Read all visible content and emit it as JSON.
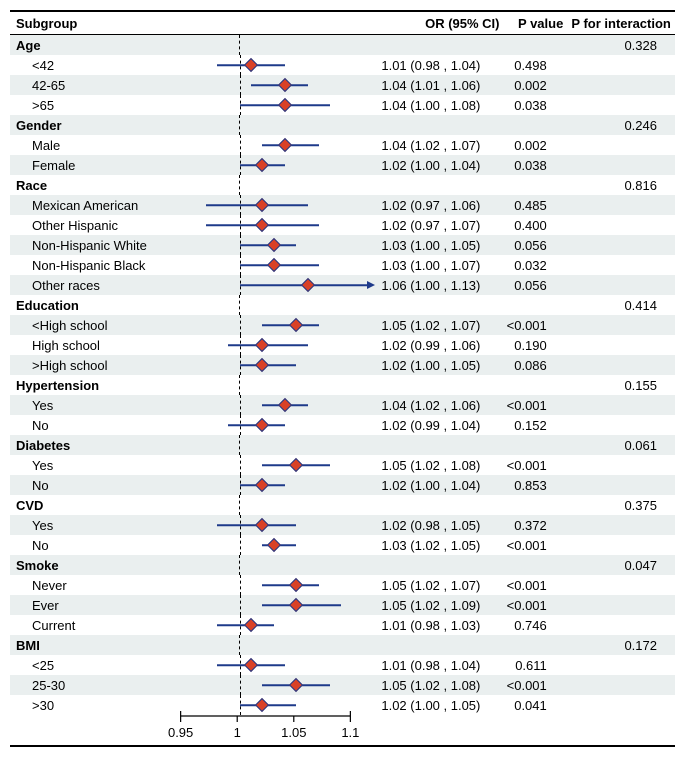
{
  "headers": {
    "subgroup": "Subgroup",
    "or": "OR (95% CI)",
    "p": "P value",
    "pint": "P for interaction"
  },
  "plot": {
    "xmin": 0.93,
    "xmax": 1.12,
    "ref": 1.0,
    "axis_start": 0.95,
    "axis_end": 1.1,
    "ticks": [
      0.95,
      1,
      1.05,
      1.1
    ],
    "tick_labels": [
      "0.95",
      "1",
      "1.05",
      "1.1"
    ],
    "line_color": "#1e3a8a",
    "point_fill": "#d94126",
    "point_stroke": "#1e3a8a",
    "stripe_color": "#eaefef",
    "text_color": "#000000",
    "font_size": 13
  },
  "rows": [
    {
      "type": "group",
      "label": "Age",
      "pint": "0.328",
      "striped": true
    },
    {
      "type": "item",
      "label": "<42",
      "or": 1.01,
      "lo": 0.98,
      "hi": 1.04,
      "or_text": "1.01 (0.98 , 1.04)",
      "p": "0.498",
      "striped": false
    },
    {
      "type": "item",
      "label": "42-65",
      "or": 1.04,
      "lo": 1.01,
      "hi": 1.06,
      "or_text": "1.04 (1.01 , 1.06)",
      "p": "0.002",
      "striped": true
    },
    {
      "type": "item",
      "label": ">65",
      "or": 1.04,
      "lo": 1.0,
      "hi": 1.08,
      "or_text": "1.04 (1.00 , 1.08)",
      "p": "0.038",
      "striped": false
    },
    {
      "type": "group",
      "label": "Gender",
      "pint": "0.246",
      "striped": true
    },
    {
      "type": "item",
      "label": "Male",
      "or": 1.04,
      "lo": 1.02,
      "hi": 1.07,
      "or_text": "1.04 (1.02 , 1.07)",
      "p": "0.002",
      "striped": false
    },
    {
      "type": "item",
      "label": "Female",
      "or": 1.02,
      "lo": 1.0,
      "hi": 1.04,
      "or_text": "1.02 (1.00 , 1.04)",
      "p": "0.038",
      "striped": true
    },
    {
      "type": "group",
      "label": "Race",
      "pint": "0.816",
      "striped": false
    },
    {
      "type": "item",
      "label": "Mexican American",
      "or": 1.02,
      "lo": 0.97,
      "hi": 1.06,
      "or_text": "1.02 (0.97 , 1.06)",
      "p": "0.485",
      "striped": true
    },
    {
      "type": "item",
      "label": "Other Hispanic",
      "or": 1.02,
      "lo": 0.97,
      "hi": 1.07,
      "or_text": "1.02 (0.97 , 1.07)",
      "p": "0.400",
      "striped": false
    },
    {
      "type": "item",
      "label": "Non-Hispanic White",
      "or": 1.03,
      "lo": 1.0,
      "hi": 1.05,
      "or_text": "1.03 (1.00 , 1.05)",
      "p": "0.056",
      "striped": true
    },
    {
      "type": "item",
      "label": "Non-Hispanic Black",
      "or": 1.03,
      "lo": 1.0,
      "hi": 1.07,
      "or_text": "1.03 (1.00 , 1.07)",
      "p": "0.032",
      "striped": false
    },
    {
      "type": "item",
      "label": "Other races",
      "or": 1.06,
      "lo": 1.0,
      "hi": 1.13,
      "or_text": "1.06 (1.00 , 1.13)",
      "p": "0.056",
      "striped": true,
      "arrow_right": true
    },
    {
      "type": "group",
      "label": "Education",
      "pint": "0.414",
      "striped": false
    },
    {
      "type": "item",
      "label": "<High school",
      "or": 1.05,
      "lo": 1.02,
      "hi": 1.07,
      "or_text": "1.05 (1.02 , 1.07)",
      "p": "<0.001",
      "striped": true
    },
    {
      "type": "item",
      "label": "High school",
      "or": 1.02,
      "lo": 0.99,
      "hi": 1.06,
      "or_text": "1.02 (0.99 , 1.06)",
      "p": "0.190",
      "striped": false
    },
    {
      "type": "item",
      "label": ">High school",
      "or": 1.02,
      "lo": 1.0,
      "hi": 1.05,
      "or_text": "1.02 (1.00 , 1.05)",
      "p": "0.086",
      "striped": true
    },
    {
      "type": "group",
      "label": "Hypertension",
      "pint": "0.155",
      "striped": false
    },
    {
      "type": "item",
      "label": "Yes",
      "or": 1.04,
      "lo": 1.02,
      "hi": 1.06,
      "or_text": "1.04 (1.02 , 1.06)",
      "p": "<0.001",
      "striped": true
    },
    {
      "type": "item",
      "label": "No",
      "or": 1.02,
      "lo": 0.99,
      "hi": 1.04,
      "or_text": "1.02 (0.99 , 1.04)",
      "p": "0.152",
      "striped": false
    },
    {
      "type": "group",
      "label": "Diabetes",
      "pint": "0.061",
      "striped": true
    },
    {
      "type": "item",
      "label": "Yes",
      "or": 1.05,
      "lo": 1.02,
      "hi": 1.08,
      "or_text": "1.05 (1.02 , 1.08)",
      "p": "<0.001",
      "striped": false
    },
    {
      "type": "item",
      "label": "No",
      "or": 1.02,
      "lo": 1.0,
      "hi": 1.04,
      "or_text": "1.02 (1.00 , 1.04)",
      "p": "0.853",
      "striped": true
    },
    {
      "type": "group",
      "label": "CVD",
      "pint": "0.375",
      "striped": false
    },
    {
      "type": "item",
      "label": "Yes",
      "or": 1.02,
      "lo": 0.98,
      "hi": 1.05,
      "or_text": "1.02 (0.98 , 1.05)",
      "p": "0.372",
      "striped": true
    },
    {
      "type": "item",
      "label": "No",
      "or": 1.03,
      "lo": 1.02,
      "hi": 1.05,
      "or_text": "1.03 (1.02 , 1.05)",
      "p": "<0.001",
      "striped": false
    },
    {
      "type": "group",
      "label": "Smoke",
      "pint": "0.047",
      "striped": true
    },
    {
      "type": "item",
      "label": "Never",
      "or": 1.05,
      "lo": 1.02,
      "hi": 1.07,
      "or_text": "1.05 (1.02 , 1.07)",
      "p": "<0.001",
      "striped": false
    },
    {
      "type": "item",
      "label": "Ever",
      "or": 1.05,
      "lo": 1.02,
      "hi": 1.09,
      "or_text": "1.05 (1.02 , 1.09)",
      "p": "<0.001",
      "striped": true
    },
    {
      "type": "item",
      "label": "Current",
      "or": 1.01,
      "lo": 0.98,
      "hi": 1.03,
      "or_text": "1.01 (0.98 , 1.03)",
      "p": "0.746",
      "striped": false
    },
    {
      "type": "group",
      "label": "BMI",
      "pint": "0.172",
      "striped": true
    },
    {
      "type": "item",
      "label": "<25",
      "or": 1.01,
      "lo": 0.98,
      "hi": 1.04,
      "or_text": "1.01 (0.98 , 1.04)",
      "p": "0.611",
      "striped": false
    },
    {
      "type": "item",
      "label": "25-30",
      "or": 1.05,
      "lo": 1.02,
      "hi": 1.08,
      "or_text": "1.05 (1.02 , 1.08)",
      "p": "<0.001",
      "striped": true
    },
    {
      "type": "item",
      "label": ">30",
      "or": 1.02,
      "lo": 1.0,
      "hi": 1.05,
      "or_text": "1.02 (1.00 , 1.05)",
      "p": "0.041",
      "striped": false
    }
  ]
}
